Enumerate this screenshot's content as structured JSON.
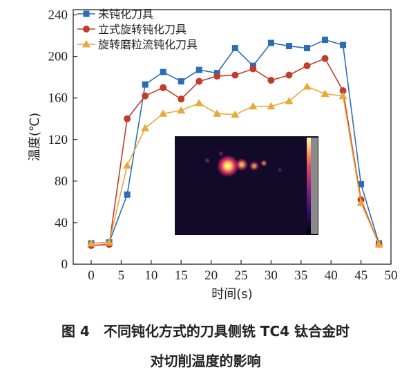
{
  "chart_data": {
    "type": "line",
    "x": [
      0,
      3,
      6,
      9,
      12,
      15,
      18,
      21,
      24,
      27,
      30,
      33,
      36,
      39,
      42,
      45,
      48
    ],
    "series": [
      {
        "name": "未钝化刀具",
        "color": "#2b6cb8",
        "marker": "square",
        "values": [
          20,
          21,
          67,
          173,
          185,
          176,
          187,
          184,
          208,
          191,
          213,
          210,
          208,
          216,
          211,
          77,
          20
        ]
      },
      {
        "name": "立式旋转钝化刀具",
        "color": "#c43b2b",
        "marker": "circle",
        "values": [
          18,
          19,
          140,
          162,
          170,
          159,
          176,
          181,
          182,
          188,
          177,
          182,
          191,
          198,
          167,
          62,
          19
        ]
      },
      {
        "name": "旋转磨粒流钝化刀具",
        "color": "#e8a93a",
        "marker": "triangle",
        "values": [
          20,
          21,
          95,
          131,
          145,
          148,
          155,
          145,
          144,
          152,
          152,
          157,
          171,
          164,
          162,
          59,
          19
        ]
      }
    ],
    "xlabel": "时间(s)",
    "ylabel": "温度(℃)",
    "xlim": [
      -3,
      50
    ],
    "ylim": [
      0,
      245
    ],
    "xticks": [
      0,
      5,
      10,
      15,
      20,
      25,
      30,
      35,
      40,
      45,
      50
    ],
    "yticks": [
      0,
      40,
      80,
      120,
      160,
      200,
      240
    ],
    "legend": "top-left",
    "grid": false,
    "inset": "thermal-image"
  },
  "caption": {
    "line1": "图 4　不同钝化方式的刀具侧铣 TC4 钛合金时",
    "line2": "对切削温度的影响"
  }
}
